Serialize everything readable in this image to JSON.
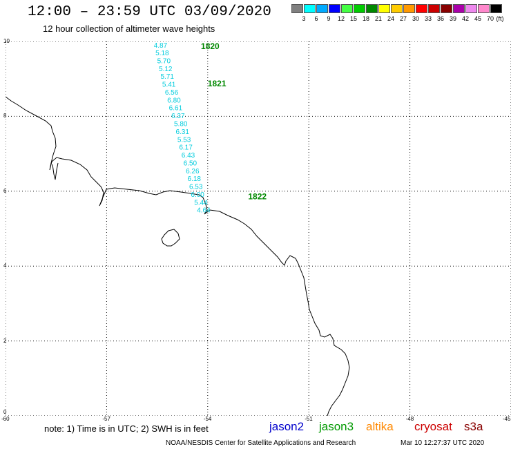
{
  "header": {
    "title": "12:00 – 23:59 UTC 03/09/2020",
    "subtitle": "12 hour collection of altimeter wave heights"
  },
  "colorbar": {
    "unit": "(ft)",
    "labels": [
      "3",
      "6",
      "9",
      "12",
      "15",
      "18",
      "21",
      "24",
      "27",
      "30",
      "33",
      "36",
      "39",
      "42",
      "45",
      "70"
    ],
    "colors": [
      "#808080",
      "#00ffff",
      "#00aaff",
      "#0000ff",
      "#44ff44",
      "#00cc00",
      "#008800",
      "#ffff00",
      "#ffcc00",
      "#ff9900",
      "#ff0000",
      "#cc0000",
      "#880000",
      "#aa00aa",
      "#ee88ee",
      "#ff88cc",
      "#000000"
    ]
  },
  "axes": {
    "x_ticks": [
      "-60",
      "-57",
      "-54",
      "-51",
      "-48",
      "-45"
    ],
    "y_ticks": [
      "0",
      "2",
      "4",
      "6",
      "8",
      "10"
    ],
    "xlim": [
      -60,
      -45
    ],
    "ylim": [
      0,
      10
    ]
  },
  "track": {
    "color": "#00ccdd",
    "points": [
      {
        "lon": -55.6,
        "lat": 9.83,
        "v": "4.87"
      },
      {
        "lon": -55.55,
        "lat": 9.63,
        "v": "5.18"
      },
      {
        "lon": -55.5,
        "lat": 9.42,
        "v": "5.70"
      },
      {
        "lon": -55.45,
        "lat": 9.21,
        "v": "5.12"
      },
      {
        "lon": -55.4,
        "lat": 9.0,
        "v": "5.71"
      },
      {
        "lon": -55.35,
        "lat": 8.79,
        "v": "5.41"
      },
      {
        "lon": -55.27,
        "lat": 8.58,
        "v": "6.56"
      },
      {
        "lon": -55.2,
        "lat": 8.37,
        "v": "6.80"
      },
      {
        "lon": -55.15,
        "lat": 8.16,
        "v": "6.61"
      },
      {
        "lon": -55.08,
        "lat": 7.95,
        "v": "6.37"
      },
      {
        "lon": -55.0,
        "lat": 7.74,
        "v": "5.80"
      },
      {
        "lon": -54.95,
        "lat": 7.53,
        "v": "6.31"
      },
      {
        "lon": -54.9,
        "lat": 7.32,
        "v": "5.53"
      },
      {
        "lon": -54.85,
        "lat": 7.11,
        "v": "6.17"
      },
      {
        "lon": -54.78,
        "lat": 6.9,
        "v": "6.43"
      },
      {
        "lon": -54.72,
        "lat": 6.69,
        "v": "6.50"
      },
      {
        "lon": -54.65,
        "lat": 6.48,
        "v": "6.26"
      },
      {
        "lon": -54.6,
        "lat": 6.27,
        "v": "6.18"
      },
      {
        "lon": -54.55,
        "lat": 6.06,
        "v": "6.53"
      },
      {
        "lon": -54.5,
        "lat": 5.85,
        "v": "6.00"
      },
      {
        "lon": -54.4,
        "lat": 5.64,
        "v": "5.44"
      },
      {
        "lon": -54.32,
        "lat": 5.43,
        "v": "4.64"
      }
    ]
  },
  "time_markers": [
    {
      "label": "1820",
      "lon": -54.2,
      "lat": 9.8
    },
    {
      "label": "1821",
      "lon": -54.0,
      "lat": 8.8
    },
    {
      "label": "1822",
      "lon": -52.8,
      "lat": 5.78
    }
  ],
  "marker_color": "#008800",
  "legend": {
    "note": "note: 1) Time is in UTC; 2) SWH is in feet",
    "satellites": [
      {
        "name": "jason2",
        "color": "#0000cc"
      },
      {
        "name": "jason3",
        "color": "#009900"
      },
      {
        "name": "altika",
        "color": "#ff8800"
      },
      {
        "name": "cryosat",
        "color": "#cc0000"
      },
      {
        "name": "s3a",
        "color": "#880000"
      }
    ]
  },
  "footer": {
    "credit": "NOAA/NESDIS Center for Satellite Applications and Research",
    "timestamp": "Mar 10 12:27:37 UTC 2020"
  }
}
